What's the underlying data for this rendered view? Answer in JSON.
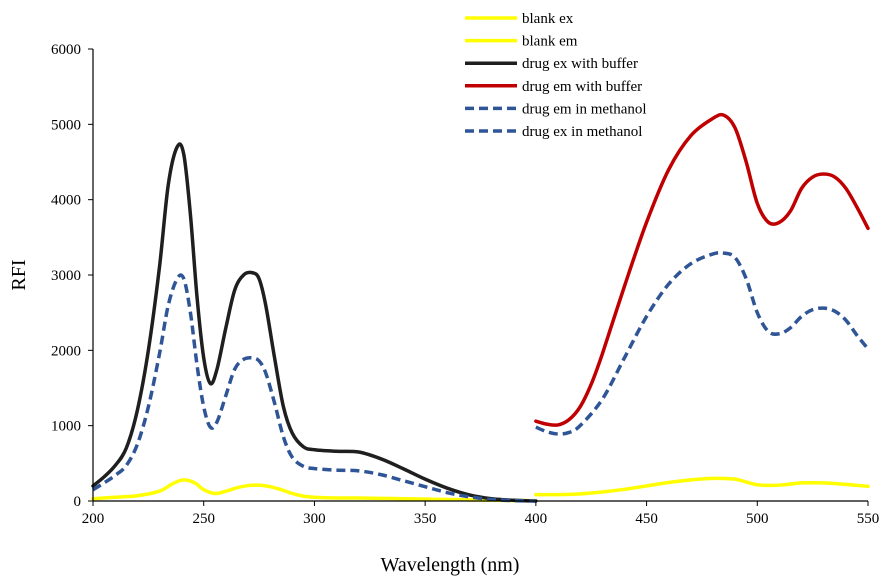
{
  "chart_data": {
    "type": "line",
    "title": "",
    "xlabel": "Wavelength (nm)",
    "ylabel": "RFI",
    "xlim": [
      200,
      550
    ],
    "ylim": [
      0,
      6000
    ],
    "xticks": [
      200,
      250,
      300,
      350,
      400,
      450,
      500,
      550
    ],
    "yticks": [
      0,
      1000,
      2000,
      3000,
      4000,
      5000,
      6000
    ],
    "grid": false,
    "legend_position": "top-right",
    "series": [
      {
        "name": "blank ex",
        "color": "#ffff00",
        "style": "solid",
        "x": [
          200,
          210,
          220,
          230,
          236,
          241,
          246,
          250,
          255,
          260,
          265,
          270,
          275,
          280,
          285,
          290,
          295,
          300,
          310,
          320,
          330,
          340,
          350,
          360,
          370,
          380,
          390,
          400
        ],
        "y": [
          30,
          50,
          70,
          130,
          230,
          280,
          240,
          150,
          100,
          130,
          175,
          205,
          210,
          190,
          150,
          100,
          65,
          50,
          40,
          40,
          35,
          30,
          25,
          20,
          15,
          10,
          5,
          5
        ]
      },
      {
        "name": "blank em",
        "color": "#ffff00",
        "style": "solid",
        "x": [
          400,
          410,
          420,
          430,
          440,
          450,
          460,
          470,
          480,
          490,
          500,
          510,
          520,
          530,
          540,
          550
        ],
        "y": [
          85,
          85,
          95,
          120,
          155,
          200,
          245,
          280,
          300,
          290,
          215,
          210,
          240,
          240,
          220,
          195
        ]
      },
      {
        "name": "drug ex with buffer",
        "color": "#1f1f1f",
        "style": "solid",
        "x": [
          200,
          205,
          210,
          215,
          220,
          225,
          230,
          234,
          238,
          241,
          244,
          247,
          250,
          253,
          256,
          260,
          264,
          268,
          272,
          275,
          278,
          282,
          286,
          290,
          295,
          300,
          310,
          320,
          330,
          340,
          350,
          360,
          370,
          380,
          390,
          400
        ],
        "y": [
          200,
          320,
          470,
          700,
          1200,
          2000,
          3100,
          4200,
          4700,
          4600,
          3800,
          2700,
          1900,
          1560,
          1750,
          2300,
          2800,
          3000,
          3030,
          2950,
          2600,
          1900,
          1250,
          900,
          720,
          680,
          660,
          650,
          560,
          430,
          290,
          170,
          80,
          30,
          10,
          0
        ]
      },
      {
        "name": "drug em with buffer",
        "color": "#c00000",
        "style": "solid",
        "x": [
          400,
          405,
          410,
          415,
          420,
          425,
          430,
          440,
          450,
          460,
          470,
          480,
          485,
          490,
          495,
          500,
          505,
          510,
          515,
          520,
          525,
          530,
          535,
          540,
          545,
          550
        ],
        "y": [
          1060,
          1020,
          1010,
          1080,
          1250,
          1550,
          1950,
          2850,
          3700,
          4400,
          4850,
          5080,
          5120,
          4950,
          4500,
          3950,
          3700,
          3700,
          3850,
          4150,
          4300,
          4340,
          4300,
          4150,
          3900,
          3620
        ]
      },
      {
        "name": "drug em in methanol",
        "color": "#2f5597",
        "style": "dashed",
        "x": [
          400,
          405,
          410,
          415,
          420,
          430,
          440,
          450,
          460,
          470,
          480,
          485,
          490,
          495,
          500,
          505,
          510,
          515,
          520,
          525,
          530,
          535,
          540,
          545,
          550
        ],
        "y": [
          980,
          920,
          890,
          910,
          1000,
          1350,
          1900,
          2450,
          2880,
          3150,
          3280,
          3290,
          3230,
          2950,
          2500,
          2250,
          2220,
          2300,
          2450,
          2540,
          2560,
          2520,
          2400,
          2200,
          2020
        ]
      },
      {
        "name": "drug ex in methanol",
        "color": "#2f5597",
        "style": "dashed",
        "x": [
          200,
          205,
          210,
          215,
          220,
          225,
          230,
          234,
          238,
          241,
          244,
          247,
          250,
          253,
          256,
          260,
          264,
          268,
          272,
          275,
          278,
          282,
          286,
          290,
          295,
          300,
          310,
          320,
          330,
          340,
          350,
          360,
          370,
          380,
          390,
          400
        ],
        "y": [
          150,
          240,
          340,
          470,
          750,
          1250,
          1950,
          2600,
          2950,
          2950,
          2500,
          1800,
          1250,
          980,
          1050,
          1400,
          1750,
          1880,
          1900,
          1860,
          1700,
          1300,
          850,
          580,
          460,
          430,
          410,
          400,
          350,
          270,
          190,
          110,
          55,
          20,
          5,
          0
        ]
      }
    ]
  }
}
